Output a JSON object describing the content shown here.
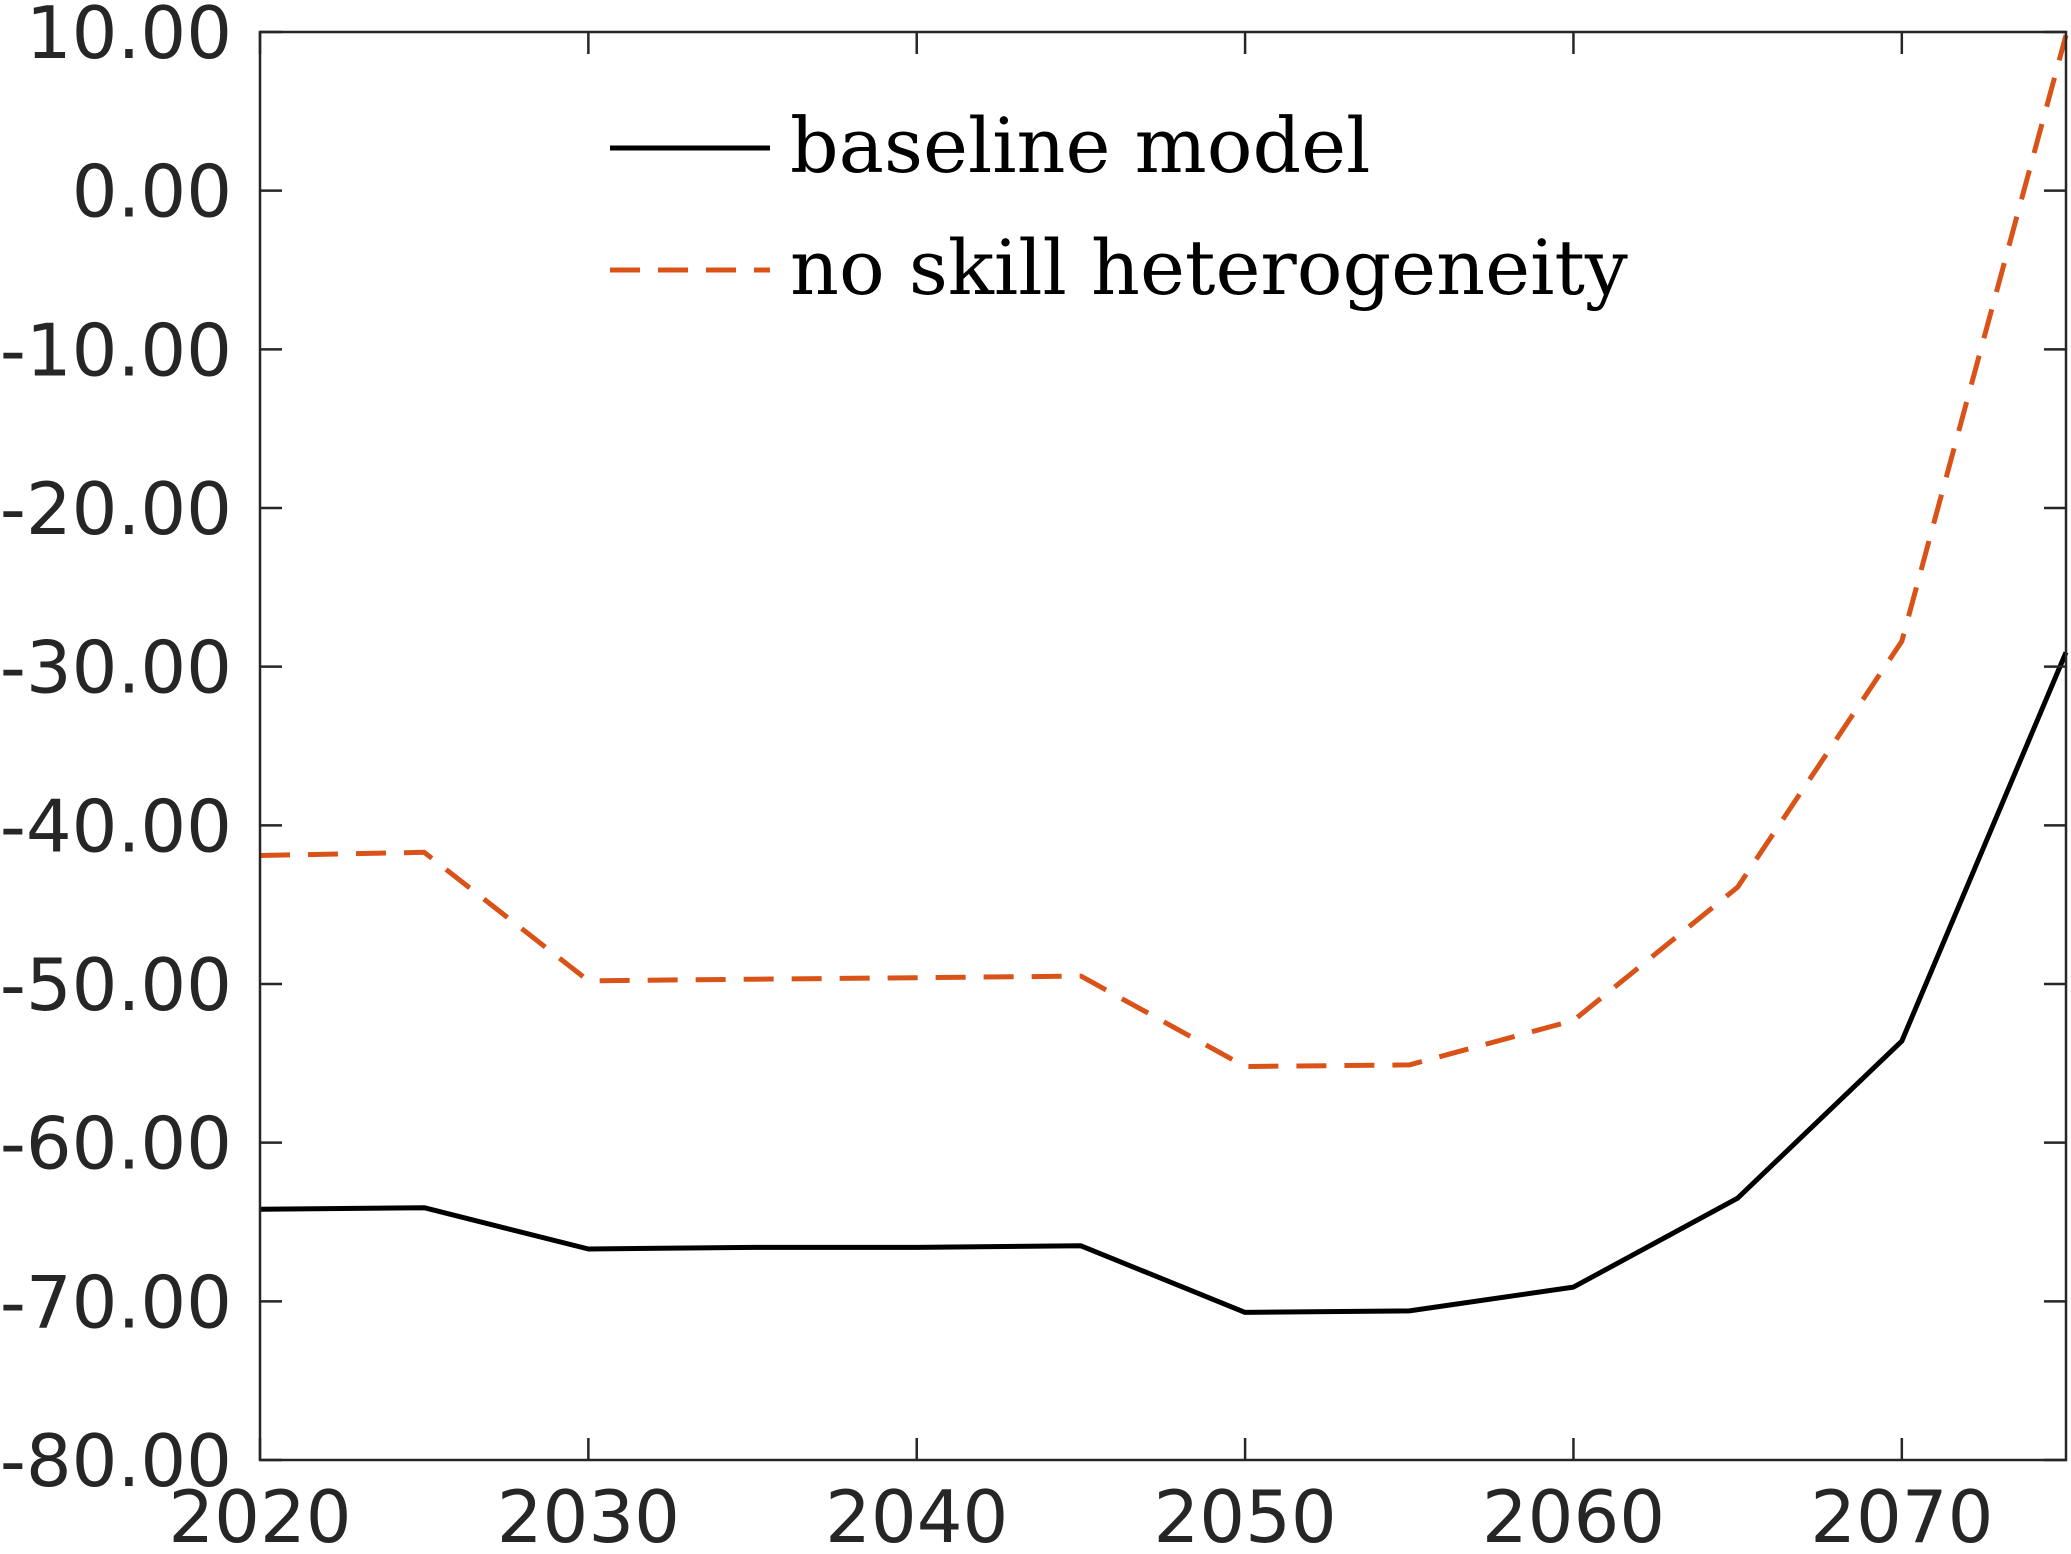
{
  "chart_data": {
    "type": "line",
    "title": "",
    "xlabel": "",
    "ylabel": "",
    "xlim": [
      2020,
      2075
    ],
    "ylim": [
      -80,
      10
    ],
    "x": [
      2020,
      2025,
      2030,
      2035,
      2040,
      2045,
      2050,
      2055,
      2060,
      2065,
      2070,
      2075
    ],
    "series": [
      {
        "name": "baseline model",
        "style": "solid",
        "color": "#000000",
        "values": [
          -64.2,
          -64.1,
          -66.7,
          -66.6,
          -66.6,
          -66.5,
          -70.7,
          -70.6,
          -69.1,
          -63.5,
          -53.6,
          -29.1
        ]
      },
      {
        "name": "no skill heterogeneity",
        "style": "dashed",
        "color": "#d95319",
        "values": [
          -41.9,
          -41.7,
          -49.8,
          -49.7,
          -49.6,
          -49.5,
          -55.2,
          -55.1,
          -52.3,
          -43.9,
          -28.4,
          9.8
        ]
      }
    ],
    "x_ticks": [
      {
        "value": 2020,
        "label": "2020"
      },
      {
        "value": 2030,
        "label": "2030"
      },
      {
        "value": 2040,
        "label": "2040"
      },
      {
        "value": 2050,
        "label": "2050"
      },
      {
        "value": 2060,
        "label": "2060"
      },
      {
        "value": 2070,
        "label": "2070"
      }
    ],
    "y_ticks": [
      {
        "value": 10,
        "label": "10.00"
      },
      {
        "value": 0,
        "label": "0.00"
      },
      {
        "value": -10,
        "label": "-10.00"
      },
      {
        "value": -20,
        "label": "-20.00"
      },
      {
        "value": -30,
        "label": "-30.00"
      },
      {
        "value": -40,
        "label": "-40.00"
      },
      {
        "value": -50,
        "label": "-50.00"
      },
      {
        "value": -60,
        "label": "-60.00"
      },
      {
        "value": -70,
        "label": "-70.00"
      },
      {
        "value": -80,
        "label": "-80.00"
      }
    ],
    "legend": "top-center",
    "grid": false
  }
}
